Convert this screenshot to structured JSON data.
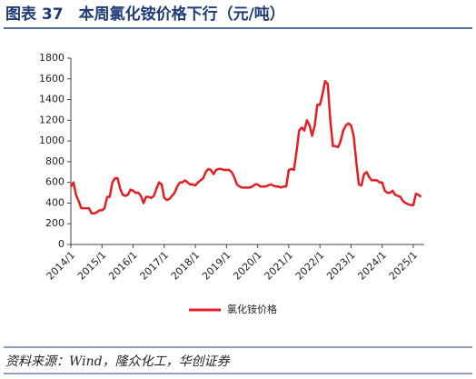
{
  "chart_data": {
    "type": "line",
    "title": "图表 37　本周氯化铵价格下行（元/吨）",
    "source": "资料来源：Wind，隆众化工，华创证券",
    "x": [
      "2014/1",
      "2014/2",
      "2014/3",
      "2014/4",
      "2014/5",
      "2014/6",
      "2014/7",
      "2014/8",
      "2014/9",
      "2014/10",
      "2014/11",
      "2014/12",
      "2015/1",
      "2015/2",
      "2015/3",
      "2015/4",
      "2015/5",
      "2015/6",
      "2015/7",
      "2015/8",
      "2015/9",
      "2015/10",
      "2015/11",
      "2015/12",
      "2016/1",
      "2016/2",
      "2016/3",
      "2016/4",
      "2016/5",
      "2016/6",
      "2016/7",
      "2016/8",
      "2016/9",
      "2016/10",
      "2016/11",
      "2016/12",
      "2017/1",
      "2017/2",
      "2017/3",
      "2017/4",
      "2017/5",
      "2017/6",
      "2017/7",
      "2017/8",
      "2017/9",
      "2017/10",
      "2017/11",
      "2017/12",
      "2018/1",
      "2018/2",
      "2018/3",
      "2018/4",
      "2018/5",
      "2018/6",
      "2018/7",
      "2018/8",
      "2018/9",
      "2018/10",
      "2018/11",
      "2018/12",
      "2019/1",
      "2019/2",
      "2019/3",
      "2019/4",
      "2019/5",
      "2019/6",
      "2019/7",
      "2019/8",
      "2019/9",
      "2019/10",
      "2019/11",
      "2019/12",
      "2020/1",
      "2020/2",
      "2020/3",
      "2020/4",
      "2020/5",
      "2020/6",
      "2020/7",
      "2020/8",
      "2020/9",
      "2020/10",
      "2020/11",
      "2020/12",
      "2021/1",
      "2021/2",
      "2021/3",
      "2021/4",
      "2021/5",
      "2021/6",
      "2021/7",
      "2021/8",
      "2021/9",
      "2021/10",
      "2021/11",
      "2021/12",
      "2022/1",
      "2022/2",
      "2022/3",
      "2022/4",
      "2022/5",
      "2022/6",
      "2022/7",
      "2022/8",
      "2022/9",
      "2022/10",
      "2022/11",
      "2022/12",
      "2023/1",
      "2023/2",
      "2023/3",
      "2023/4",
      "2023/5",
      "2023/6",
      "2023/7",
      "2023/8",
      "2023/9",
      "2023/10",
      "2023/11",
      "2023/12",
      "2024/1",
      "2024/2",
      "2024/3",
      "2024/4",
      "2024/5",
      "2024/6",
      "2024/7",
      "2024/8",
      "2024/9",
      "2024/10",
      "2024/11",
      "2024/12",
      "2025/1",
      "2025/2",
      "2025/3",
      "2025/4"
    ],
    "series": [
      {
        "name": "氯化铵价格",
        "color": "#e31e24",
        "values": [
          560,
          600,
          480,
          420,
          350,
          350,
          350,
          350,
          300,
          300,
          310,
          330,
          330,
          350,
          460,
          460,
          600,
          640,
          640,
          540,
          480,
          470,
          480,
          530,
          520,
          500,
          500,
          470,
          400,
          460,
          460,
          450,
          470,
          540,
          600,
          580,
          450,
          430,
          440,
          470,
          500,
          560,
          600,
          600,
          620,
          600,
          580,
          580,
          570,
          600,
          620,
          640,
          700,
          730,
          720,
          680,
          720,
          730,
          730,
          720,
          720,
          720,
          700,
          650,
          580,
          560,
          550,
          550,
          550,
          550,
          560,
          580,
          580,
          560,
          560,
          560,
          570,
          580,
          570,
          560,
          560,
          550,
          560,
          560,
          720,
          730,
          720,
          900,
          1100,
          1130,
          1100,
          1200,
          1150,
          1050,
          1150,
          1350,
          1350,
          1450,
          1580,
          1550,
          1200,
          950,
          950,
          940,
          1000,
          1100,
          1150,
          1170,
          1150,
          1050,
          800,
          580,
          570,
          680,
          700,
          650,
          620,
          620,
          620,
          600,
          600,
          520,
          500,
          500,
          520,
          480,
          470,
          460,
          420,
          400,
          390,
          380,
          380,
          490,
          480,
          460
        ]
      }
    ],
    "ylim": [
      0,
      1800
    ],
    "yticks": [
      0,
      200,
      400,
      600,
      800,
      1000,
      1200,
      1400,
      1600,
      1800
    ],
    "xticks": [
      "2014/1",
      "2015/1",
      "2016/1",
      "2017/1",
      "2018/1",
      "2019/1",
      "2020/1",
      "2021/1",
      "2022/1",
      "2023/1",
      "2024/1",
      "2025/1"
    ],
    "grid": false,
    "legend": "bottom"
  }
}
